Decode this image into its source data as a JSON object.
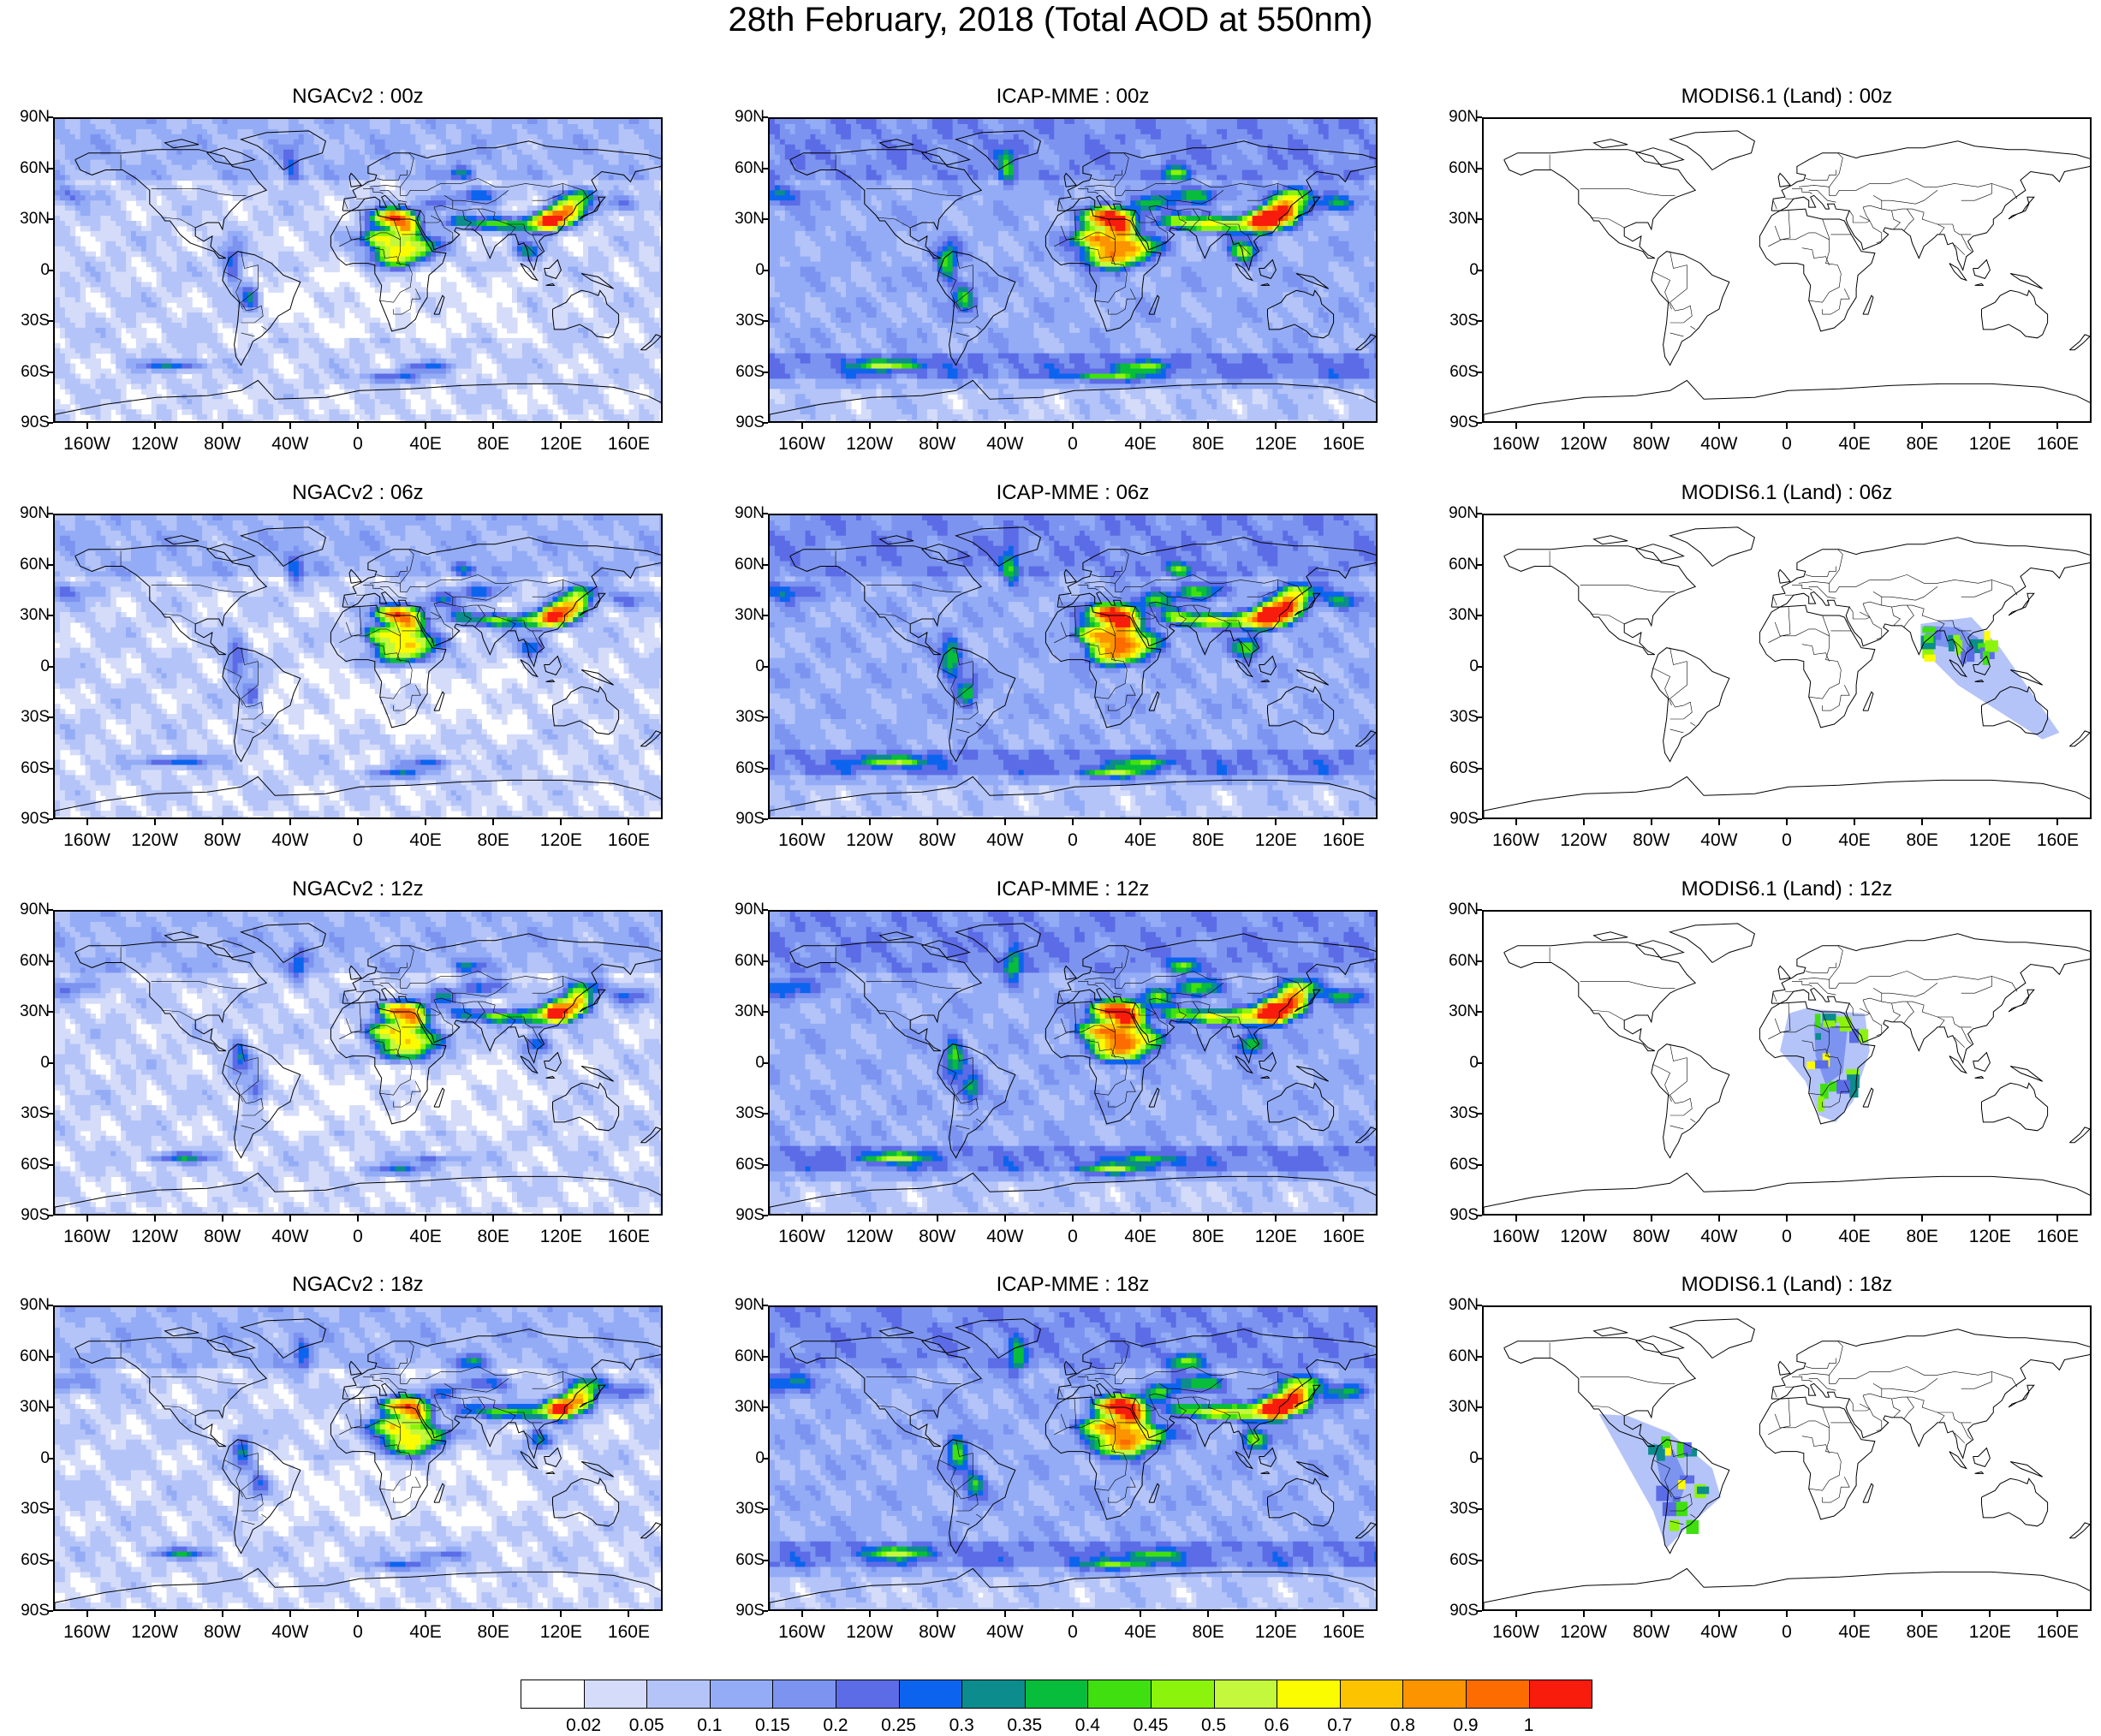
{
  "title": "28th February, 2018 (Total AOD at 550nm)",
  "lat_labels": [
    "90N",
    "60N",
    "30N",
    "0",
    "30S",
    "60S",
    "90S"
  ],
  "lon_labels": [
    "160W",
    "120W",
    "80W",
    "40W",
    "0",
    "40E",
    "80E",
    "120E",
    "160E"
  ],
  "columns": [
    {
      "model": "NGACv2",
      "style": "model"
    },
    {
      "model": "ICAP-MME",
      "style": "model"
    },
    {
      "model": "MODIS6.1 (Land)",
      "style": "obs"
    }
  ],
  "panels": [
    {
      "title": "NGACv2 : 00z",
      "col": 0,
      "row": 0
    },
    {
      "title": "ICAP-MME : 00z",
      "col": 1,
      "row": 0
    },
    {
      "title": "MODIS6.1 (Land) : 00z",
      "col": 2,
      "row": 0,
      "swath": "none"
    },
    {
      "title": "NGACv2 : 06z",
      "col": 0,
      "row": 1
    },
    {
      "title": "ICAP-MME : 06z",
      "col": 1,
      "row": 1
    },
    {
      "title": "MODIS6.1 (Land) : 06z",
      "col": 2,
      "row": 1,
      "swath": "south-asia"
    },
    {
      "title": "NGACv2 : 12z",
      "col": 0,
      "row": 2
    },
    {
      "title": "ICAP-MME : 12z",
      "col": 1,
      "row": 2
    },
    {
      "title": "MODIS6.1 (Land) : 12z",
      "col": 2,
      "row": 2,
      "swath": "africa"
    },
    {
      "title": "NGACv2 : 18z",
      "col": 0,
      "row": 3
    },
    {
      "title": "ICAP-MME : 18z",
      "col": 1,
      "row": 3
    },
    {
      "title": "MODIS6.1 (Land) : 18z",
      "col": 2,
      "row": 3,
      "swath": "south-america"
    }
  ],
  "colorbar": {
    "labels": [
      "0.02",
      "0.05",
      "0.1",
      "0.15",
      "0.2",
      "0.25",
      "0.3",
      "0.35",
      "0.4",
      "0.45",
      "0.5",
      "0.6",
      "0.7",
      "0.8",
      "0.9",
      "1"
    ],
    "colors": [
      "#ffffff",
      "#d4dcfa",
      "#b4c4f8",
      "#94acf6",
      "#7c94f0",
      "#5c6ce6",
      "#0c64ee",
      "#0c8c8c",
      "#08bc3c",
      "#40e010",
      "#8cf40c",
      "#c4f83c",
      "#fcfc00",
      "#fcc400",
      "#fc9400",
      "#fc6c00",
      "#f81c0c"
    ]
  }
}
